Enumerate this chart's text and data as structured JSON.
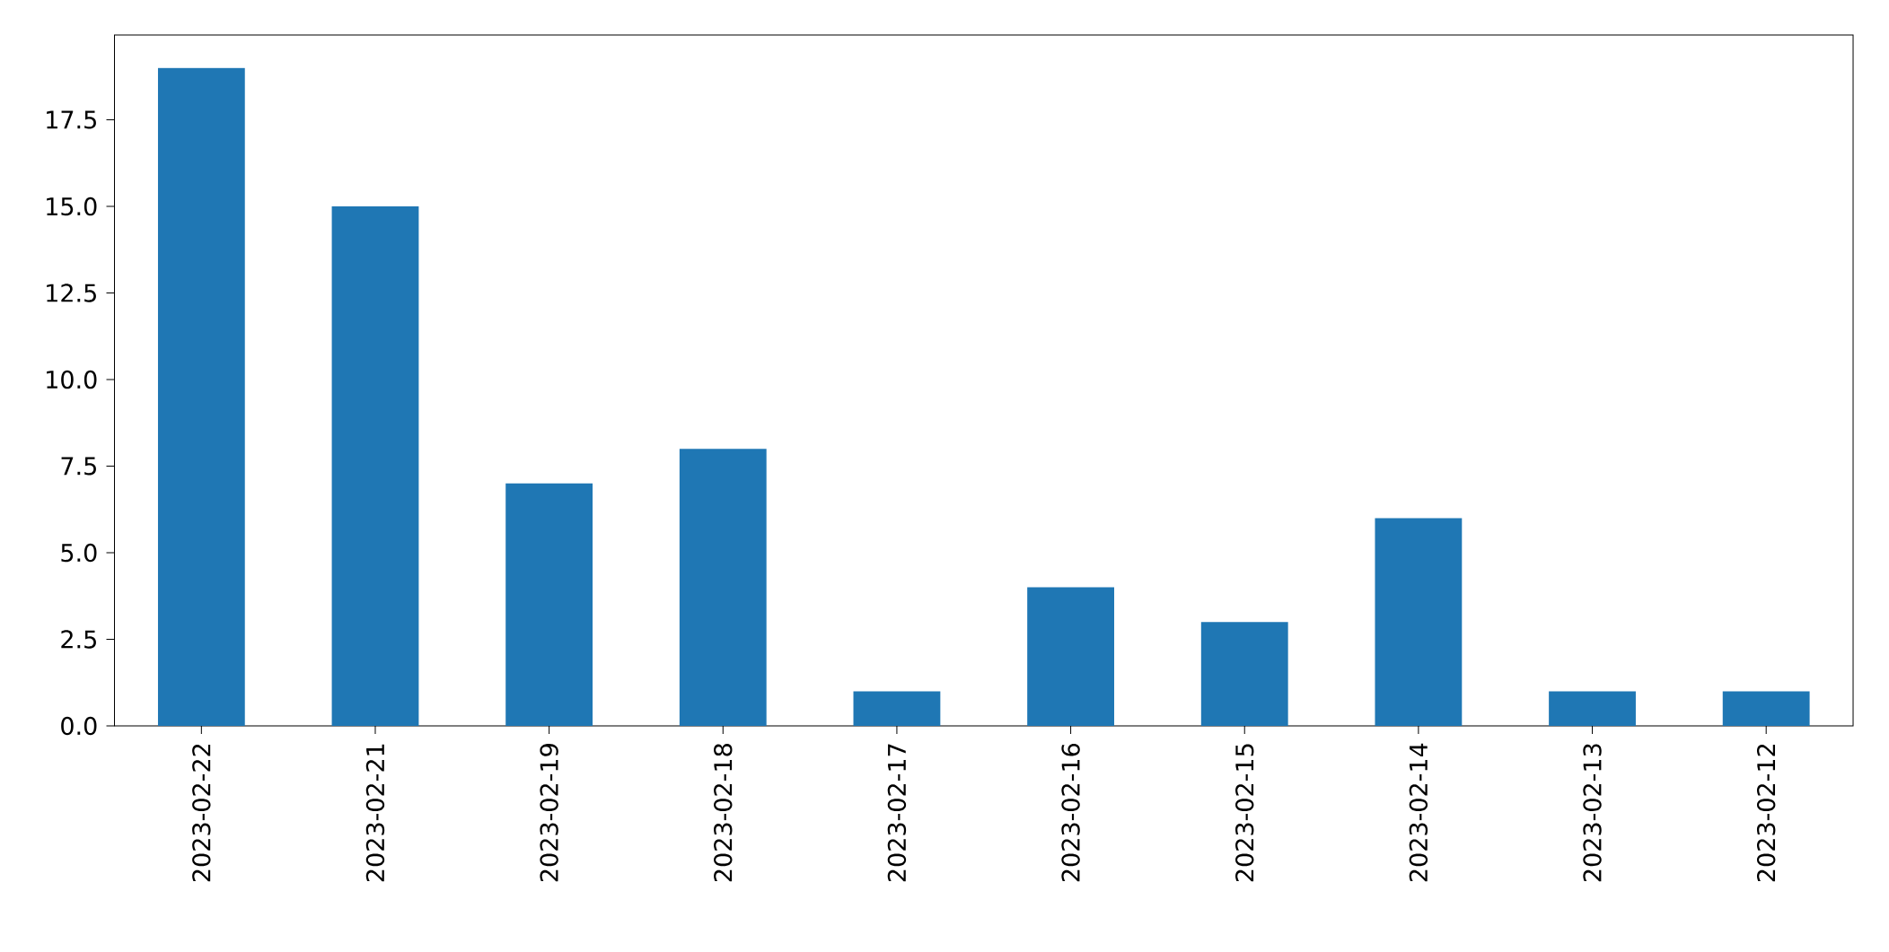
{
  "chart_data": {
    "type": "bar",
    "categories": [
      "2023-02-22",
      "2023-02-21",
      "2023-02-19",
      "2023-02-18",
      "2023-02-17",
      "2023-02-16",
      "2023-02-15",
      "2023-02-14",
      "2023-02-13",
      "2023-02-12"
    ],
    "values": [
      19,
      15,
      7,
      8,
      1,
      4,
      3,
      6,
      1,
      1
    ],
    "color": "#1f77b4",
    "ylim": [
      0,
      19.95
    ],
    "yticks": [
      {
        "value": 0,
        "label": "0.0"
      },
      {
        "value": 2.5,
        "label": "2.5"
      },
      {
        "value": 5,
        "label": "5.0"
      },
      {
        "value": 7.5,
        "label": "7.5"
      },
      {
        "value": 10,
        "label": "10.0"
      },
      {
        "value": 12.5,
        "label": "12.5"
      },
      {
        "value": 15,
        "label": "15.0"
      },
      {
        "value": 17.5,
        "label": "17.5"
      }
    ]
  }
}
